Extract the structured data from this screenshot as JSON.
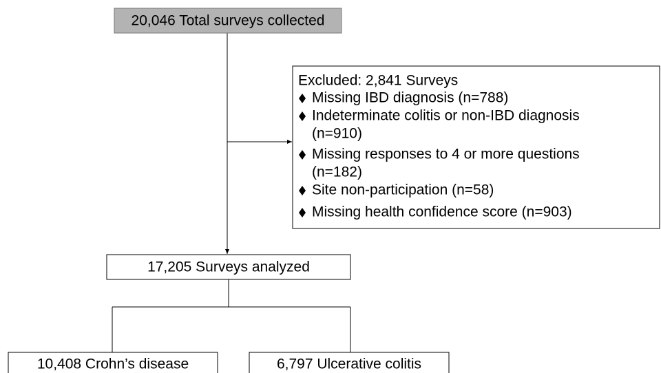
{
  "nodes": [
    {
      "label": "20,046 Total surveys collected"
    },
    {
      "label": "17,205 Surveys analyzed"
    },
    {
      "label": "10,408 Crohn’s disease"
    },
    {
      "label": "6,797 Ulcerative colitis"
    }
  ],
  "exclusion": {
    "title": "Excluded: 2,841 Surveys",
    "items": [
      [
        "Missing IBD diagnosis (n=788)"
      ],
      [
        "Indeterminate colitis or non-IBD diagnosis",
        "(n=910)"
      ],
      [
        "Missing responses to 4 or more questions",
        "(n=182)"
      ],
      [
        "Site non-participation (n=58)"
      ],
      [
        "Missing health confidence score (n=903)"
      ]
    ]
  }
}
